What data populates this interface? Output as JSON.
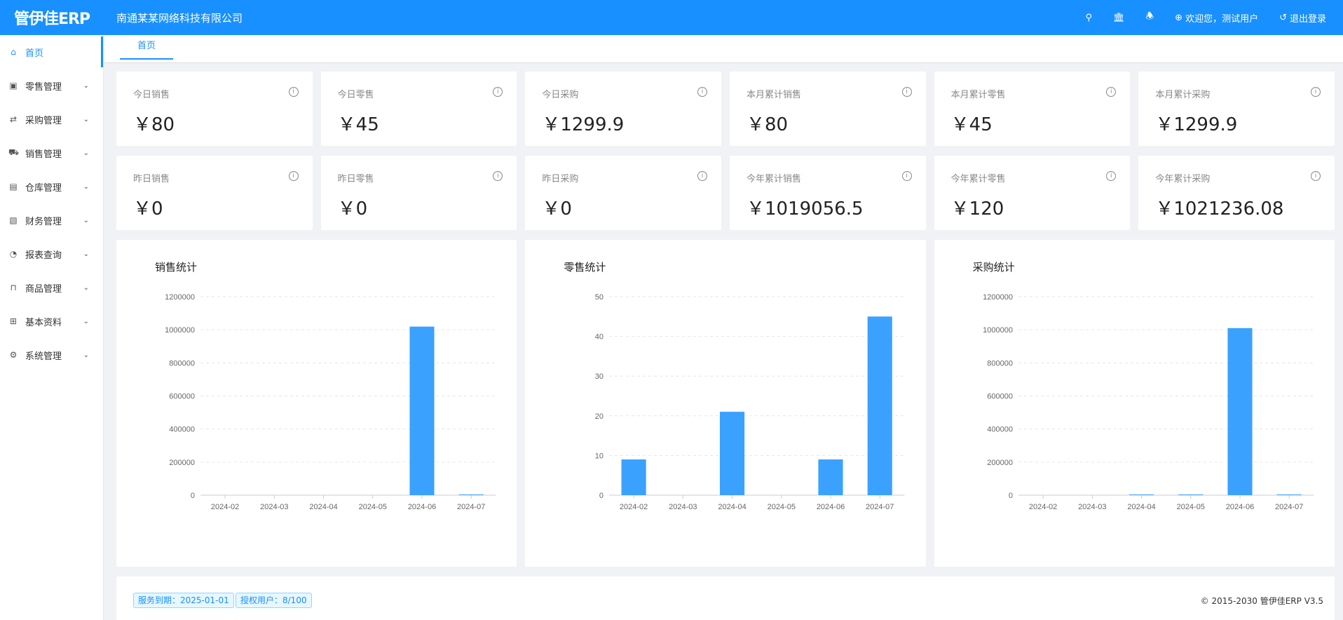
{
  "header": {
    "logo": "管伊佳ERP",
    "company": "南通某某网络科技有限公司",
    "welcome": "欢迎您，测试用户",
    "logout": "退出登录"
  },
  "sidebar": {
    "items": [
      {
        "label": "首页",
        "icon": "home-icon",
        "active": true
      },
      {
        "label": "零售管理",
        "icon": "gift-icon"
      },
      {
        "label": "采购管理",
        "icon": "swap-icon"
      },
      {
        "label": "销售管理",
        "icon": "cart-icon"
      },
      {
        "label": "仓库管理",
        "icon": "warehouse-icon"
      },
      {
        "label": "财务管理",
        "icon": "finance-icon"
      },
      {
        "label": "报表查询",
        "icon": "pie-chart-icon"
      },
      {
        "label": "商品管理",
        "icon": "shopping-bag-icon"
      },
      {
        "label": "基本资料",
        "icon": "grid-icon"
      },
      {
        "label": "系统管理",
        "icon": "gear-icon"
      }
    ]
  },
  "tabs": [
    {
      "label": "首页"
    }
  ],
  "stats": [
    {
      "label": "今日销售",
      "value": "￥80"
    },
    {
      "label": "今日零售",
      "value": "￥45"
    },
    {
      "label": "今日采购",
      "value": "￥1299.9"
    },
    {
      "label": "本月累计销售",
      "value": "￥80"
    },
    {
      "label": "本月累计零售",
      "value": "￥45"
    },
    {
      "label": "本月累计采购",
      "value": "￥1299.9"
    },
    {
      "label": "昨日销售",
      "value": "￥0"
    },
    {
      "label": "昨日零售",
      "value": "￥0"
    },
    {
      "label": "昨日采购",
      "value": "￥0"
    },
    {
      "label": "今年累计销售",
      "value": "￥1019056.5"
    },
    {
      "label": "今年累计零售",
      "value": "￥120"
    },
    {
      "label": "今年累计采购",
      "value": "￥1021236.08"
    }
  ],
  "chart_data": [
    {
      "type": "bar",
      "title": "销售统计",
      "categories": [
        "2024-02",
        "2024-03",
        "2024-04",
        "2024-05",
        "2024-06",
        "2024-07"
      ],
      "values": [
        0,
        0,
        0,
        0,
        1018976.5,
        80
      ],
      "ylim": [
        0,
        1200000
      ],
      "yticks": [
        "0",
        "200000",
        "400000",
        "600000",
        "800000",
        "1000000",
        "1200000"
      ],
      "grid": true,
      "color": "#3ba1ff"
    },
    {
      "type": "bar",
      "title": "零售统计",
      "categories": [
        "2024-02",
        "2024-03",
        "2024-04",
        "2024-05",
        "2024-06",
        "2024-07"
      ],
      "values": [
        9,
        0,
        21,
        0,
        9,
        45
      ],
      "ylim": [
        0,
        50
      ],
      "yticks": [
        "0",
        "10",
        "20",
        "30",
        "40",
        "50"
      ],
      "grid": true,
      "color": "#3ba1ff"
    },
    {
      "type": "bar",
      "title": "采购统计",
      "categories": [
        "2024-02",
        "2024-03",
        "2024-04",
        "2024-05",
        "2024-06",
        "2024-07"
      ],
      "values": [
        0,
        0,
        3000,
        1000,
        1010000,
        1300
      ],
      "ylim": [
        0,
        1200000
      ],
      "yticks": [
        "0",
        "200000",
        "400000",
        "600000",
        "800000",
        "1000000",
        "1200000"
      ],
      "grid": true,
      "color": "#3ba1ff"
    }
  ],
  "footer": {
    "expire": "服务到期：2025-01-01",
    "users": "授权用户：8/100",
    "copyright": "© 2015-2030 管伊佳ERP V3.5"
  }
}
